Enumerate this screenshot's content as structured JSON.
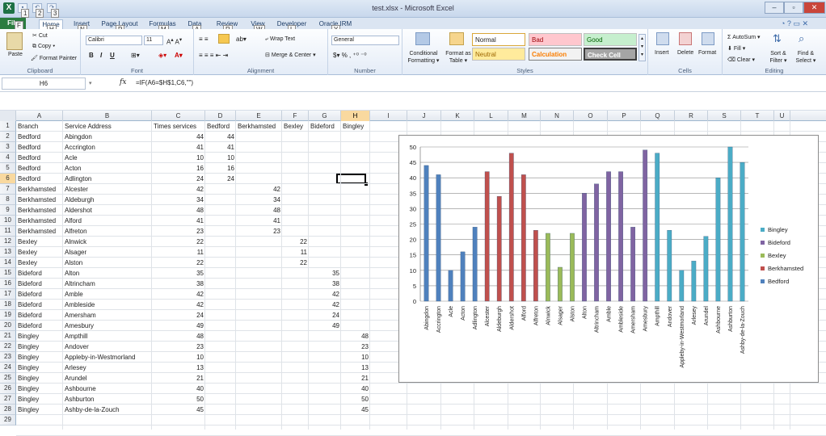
{
  "window": {
    "title": "test.xlsx - Microsoft Excel",
    "app_letter": "X"
  },
  "qat": {
    "keytips": [
      "1",
      "2",
      "3"
    ]
  },
  "tabs": [
    {
      "label": "File",
      "keytip": "F"
    },
    {
      "label": "Home",
      "keytip": "H"
    },
    {
      "label": "Insert",
      "keytip": "N"
    },
    {
      "label": "Page Layout",
      "keytip": "P"
    },
    {
      "label": "Formulas",
      "keytip": "M"
    },
    {
      "label": "Data",
      "keytip": "A"
    },
    {
      "label": "Review",
      "keytip": "R"
    },
    {
      "label": "View",
      "keytip": "W"
    },
    {
      "label": "Developer",
      "keytip": "L"
    },
    {
      "label": "Oracle IRM",
      "keytip": "Y"
    }
  ],
  "ribbon": {
    "clipboard": {
      "paste": "Paste",
      "cut": "Cut",
      "copy": "Copy ▾",
      "format_painter": "Format Painter",
      "label": "Clipboard"
    },
    "font": {
      "name": "Calibri",
      "size": "11",
      "label": "Font"
    },
    "alignment": {
      "wrap": "Wrap Text",
      "merge": "Merge & Center ▾",
      "label": "Alignment"
    },
    "number": {
      "format": "General",
      "label": "Number"
    },
    "styles": {
      "conditional": "Conditional Formatting ▾",
      "format_table": "Format as Table ▾",
      "normal": "Normal",
      "bad": "Bad",
      "good": "Good",
      "neutral": "Neutral",
      "calculation": "Calculation",
      "check_cell": "Check Cell",
      "label": "Styles"
    },
    "cells": {
      "insert": "Insert",
      "delete": "Delete",
      "format": "Format",
      "label": "Cells"
    },
    "editing": {
      "autosum": "AutoSum ▾",
      "fill": "Fill ▾",
      "clear": "Clear ▾",
      "sort": "Sort & Filter ▾",
      "find": "Find & Select ▾",
      "label": "Editing"
    }
  },
  "formula_bar": {
    "name_box": "H6",
    "fx": "fx",
    "formula": "=IF(A6=$H$1,C6,\"\")"
  },
  "columns": [
    "A",
    "B",
    "C",
    "D",
    "E",
    "F",
    "G",
    "H",
    "I",
    "J",
    "K",
    "L",
    "M",
    "N",
    "O",
    "P",
    "Q",
    "R",
    "S",
    "T",
    "U"
  ],
  "rows": [
    [
      "Branch",
      "Service Address",
      "Times services",
      "Bedford",
      "Berkhamsted",
      "Bexley",
      "Bideford",
      "Bingley"
    ],
    [
      "Bedford",
      "Abingdon",
      "44",
      "44",
      "",
      "",
      "",
      ""
    ],
    [
      "Bedford",
      "Accrington",
      "41",
      "41",
      "",
      "",
      "",
      ""
    ],
    [
      "Bedford",
      "Acle",
      "10",
      "10",
      "",
      "",
      "",
      ""
    ],
    [
      "Bedford",
      "Acton",
      "16",
      "16",
      "",
      "",
      "",
      ""
    ],
    [
      "Bedford",
      "Adlington",
      "24",
      "24",
      "",
      "",
      "",
      ""
    ],
    [
      "Berkhamsted",
      "Alcester",
      "42",
      "",
      "42",
      "",
      "",
      ""
    ],
    [
      "Berkhamsted",
      "Aldeburgh",
      "34",
      "",
      "34",
      "",
      "",
      ""
    ],
    [
      "Berkhamsted",
      "Aldershot",
      "48",
      "",
      "48",
      "",
      "",
      ""
    ],
    [
      "Berkhamsted",
      "Alford",
      "41",
      "",
      "41",
      "",
      "",
      ""
    ],
    [
      "Berkhamsted",
      "Alfreton",
      "23",
      "",
      "23",
      "",
      "",
      ""
    ],
    [
      "Bexley",
      "Alnwick",
      "22",
      "",
      "",
      "22",
      "",
      ""
    ],
    [
      "Bexley",
      "Alsager",
      "11",
      "",
      "",
      "11",
      "",
      ""
    ],
    [
      "Bexley",
      "Alston",
      "22",
      "",
      "",
      "22",
      "",
      ""
    ],
    [
      "Bideford",
      "Alton",
      "35",
      "",
      "",
      "",
      "35",
      ""
    ],
    [
      "Bideford",
      "Altrincham",
      "38",
      "",
      "",
      "",
      "38",
      ""
    ],
    [
      "Bideford",
      "Amble",
      "42",
      "",
      "",
      "",
      "42",
      ""
    ],
    [
      "Bideford",
      "Ambleside",
      "42",
      "",
      "",
      "",
      "42",
      ""
    ],
    [
      "Bideford",
      "Amersham",
      "24",
      "",
      "",
      "",
      "24",
      ""
    ],
    [
      "Bideford",
      "Amesbury",
      "49",
      "",
      "",
      "",
      "49",
      ""
    ],
    [
      "Bingley",
      "Ampthill",
      "48",
      "",
      "",
      "",
      "",
      "48"
    ],
    [
      "Bingley",
      "Andover",
      "23",
      "",
      "",
      "",
      "",
      "23"
    ],
    [
      "Bingley",
      "Appleby-in-Westmorland",
      "10",
      "",
      "",
      "",
      "",
      "10"
    ],
    [
      "Bingley",
      "Arlesey",
      "13",
      "",
      "",
      "",
      "",
      "13"
    ],
    [
      "Bingley",
      "Arundel",
      "21",
      "",
      "",
      "",
      "",
      "21"
    ],
    [
      "Bingley",
      "Ashbourne",
      "40",
      "",
      "",
      "",
      "",
      "40"
    ],
    [
      "Bingley",
      "Ashburton",
      "50",
      "",
      "",
      "",
      "",
      "50"
    ],
    [
      "Bingley",
      "Ashby-de-la-Zouch",
      "45",
      "",
      "",
      "",
      "",
      "45"
    ]
  ],
  "extra_rows": [
    "29"
  ],
  "selected_cell": "H6",
  "chart_data": {
    "type": "bar",
    "categories": [
      "Abingdon",
      "Accrington",
      "Acle",
      "Acton",
      "Adlington",
      "Alcester",
      "Aldeburgh",
      "Aldershot",
      "Alford",
      "Alfreton",
      "Alnwick",
      "Alsager",
      "Alston",
      "Alton",
      "Altrincham",
      "Amble",
      "Ambleside",
      "Amersham",
      "Amesbury",
      "Ampthill",
      "Andover",
      "Appleby-in-Westmorland",
      "Arlesey",
      "Arundel",
      "Ashbourne",
      "Ashburton",
      "Ashby-de-la-Zouch"
    ],
    "series": [
      {
        "name": "Bedford",
        "color": "#4f81bd",
        "values": [
          44,
          41,
          10,
          16,
          24,
          null,
          null,
          null,
          null,
          null,
          null,
          null,
          null,
          null,
          null,
          null,
          null,
          null,
          null,
          null,
          null,
          null,
          null,
          null,
          null,
          null,
          null
        ]
      },
      {
        "name": "Berkhamsted",
        "color": "#c0504d",
        "values": [
          null,
          null,
          null,
          null,
          null,
          42,
          34,
          48,
          41,
          23,
          null,
          null,
          null,
          null,
          null,
          null,
          null,
          null,
          null,
          null,
          null,
          null,
          null,
          null,
          null,
          null,
          null
        ]
      },
      {
        "name": "Bexley",
        "color": "#9bbb59",
        "values": [
          null,
          null,
          null,
          null,
          null,
          null,
          null,
          null,
          null,
          null,
          22,
          11,
          22,
          null,
          null,
          null,
          null,
          null,
          null,
          null,
          null,
          null,
          null,
          null,
          null,
          null,
          null
        ]
      },
      {
        "name": "Bideford",
        "color": "#8064a2",
        "values": [
          null,
          null,
          null,
          null,
          null,
          null,
          null,
          null,
          null,
          null,
          null,
          null,
          null,
          35,
          38,
          42,
          42,
          24,
          49,
          null,
          null,
          null,
          null,
          null,
          null,
          null,
          null
        ]
      },
      {
        "name": "Bingley",
        "color": "#4bacc6",
        "values": [
          null,
          null,
          null,
          null,
          null,
          null,
          null,
          null,
          null,
          null,
          null,
          null,
          null,
          null,
          null,
          null,
          null,
          null,
          null,
          48,
          23,
          10,
          13,
          21,
          40,
          50,
          45
        ]
      }
    ],
    "ylim": [
      0,
      50
    ],
    "yticks": [
      "0",
      "5",
      "10",
      "15",
      "20",
      "25",
      "30",
      "35",
      "40",
      "45",
      "50"
    ],
    "legend_order": [
      "Bingley",
      "Bideford",
      "Bexley",
      "Berkhamsted",
      "Bedford"
    ],
    "legend_position": "right",
    "grid": true
  }
}
